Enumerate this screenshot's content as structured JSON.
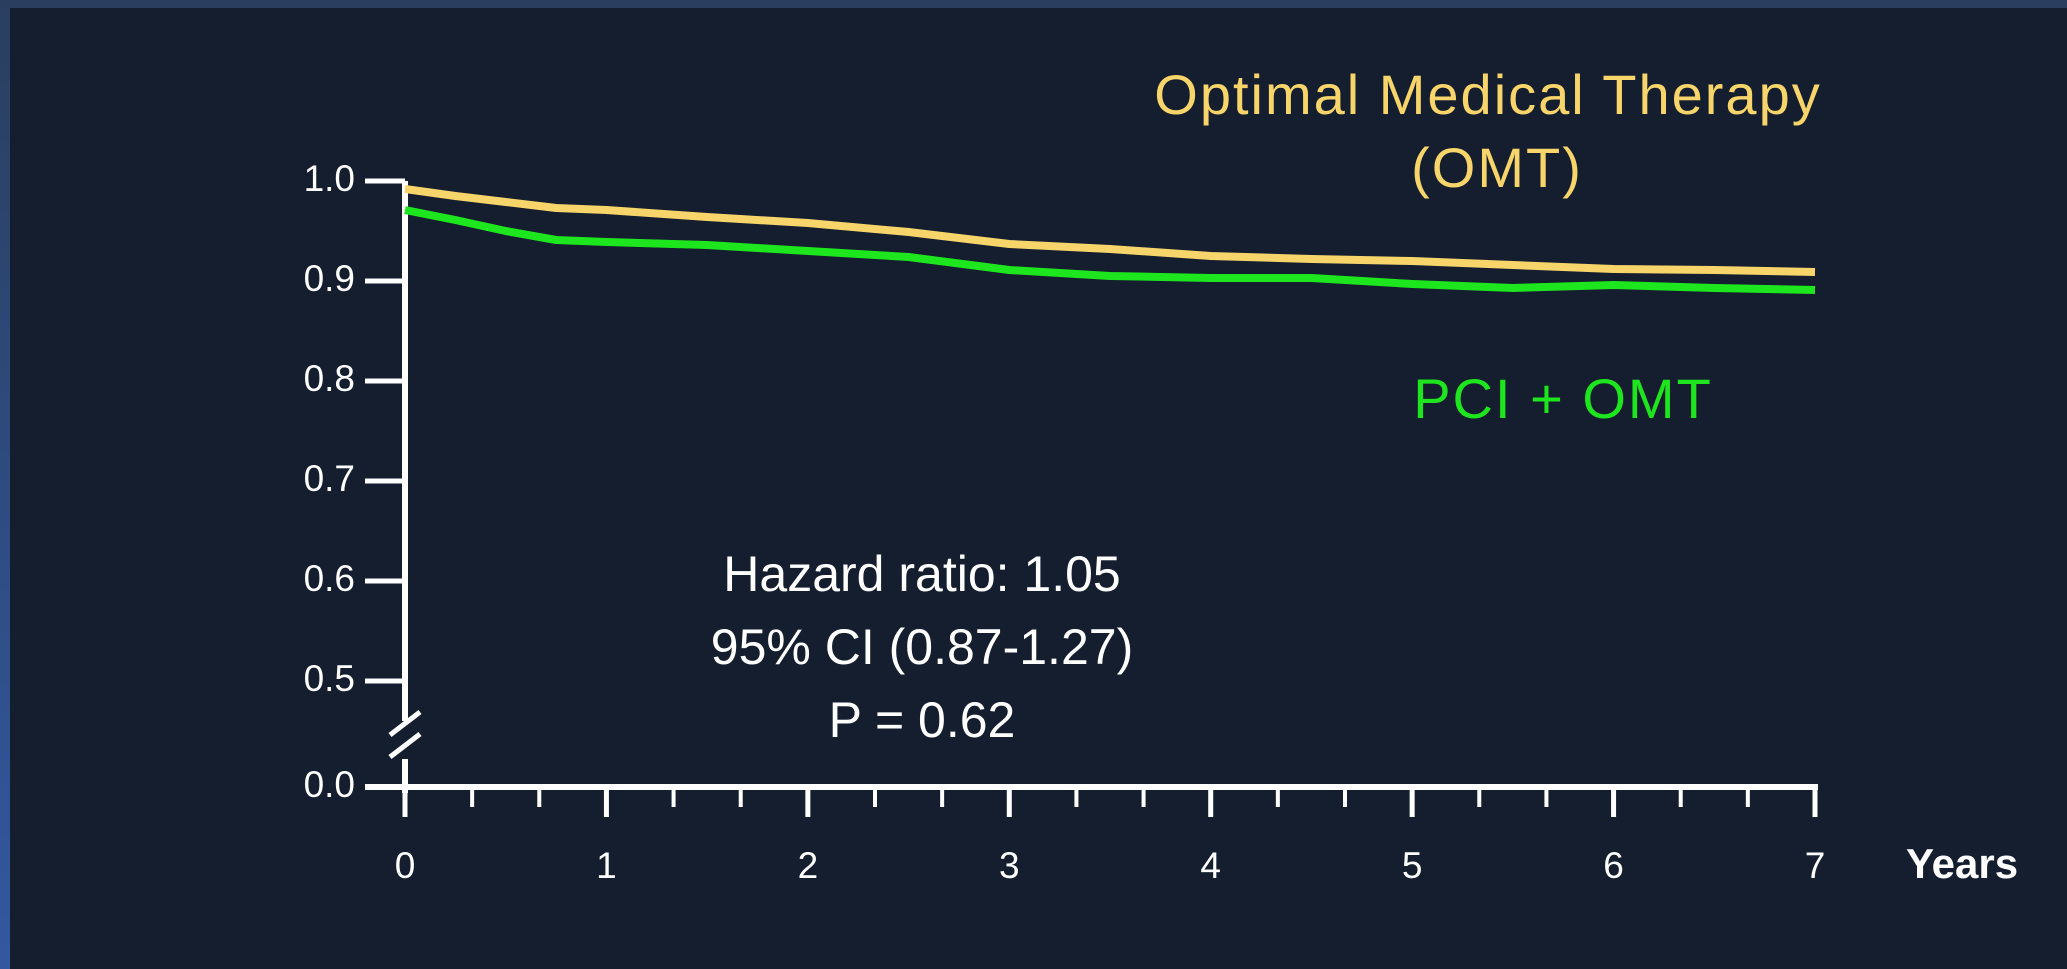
{
  "chart_data": {
    "type": "line",
    "title": [
      "Optimal Medical Therapy",
      "(OMT)"
    ],
    "annotations": [
      "Hazard ratio: 1.05",
      "95% CI (0.87-1.27)",
      "P = 0.62"
    ],
    "xlabel": "Years",
    "x": [
      0,
      0.25,
      0.5,
      0.75,
      1,
      1.5,
      2,
      2.5,
      3,
      3.5,
      4,
      4.5,
      5,
      5.5,
      6,
      6.5,
      7
    ],
    "series": [
      {
        "name": "Optimal Medical Therapy (OMT)",
        "color": "#f7d56a",
        "values": [
          0.992,
          0.985,
          0.979,
          0.973,
          0.971,
          0.964,
          0.958,
          0.949,
          0.937,
          0.932,
          0.925,
          0.922,
          0.92,
          0.916,
          0.912,
          0.911,
          0.909
        ]
      },
      {
        "name": "PCI + OMT",
        "color": "#1ee61e",
        "values": [
          0.971,
          0.961,
          0.95,
          0.941,
          0.939,
          0.936,
          0.93,
          0.924,
          0.911,
          0.905,
          0.903,
          0.903,
          0.897,
          0.893,
          0.896,
          0.893,
          0.891
        ]
      }
    ],
    "xlim": [
      0,
      7
    ],
    "xticks": [
      0,
      1,
      2,
      3,
      4,
      5,
      6,
      7
    ],
    "x_minor_per_major": 3,
    "ylim": [
      0,
      1
    ],
    "axis_break": [
      0,
      0.5
    ],
    "yticks": [
      {
        "value": 0,
        "label": "0.0"
      },
      0.5,
      0.6,
      0.7,
      0.8,
      0.9,
      {
        "value": 1,
        "label": "1.0"
      }
    ]
  }
}
